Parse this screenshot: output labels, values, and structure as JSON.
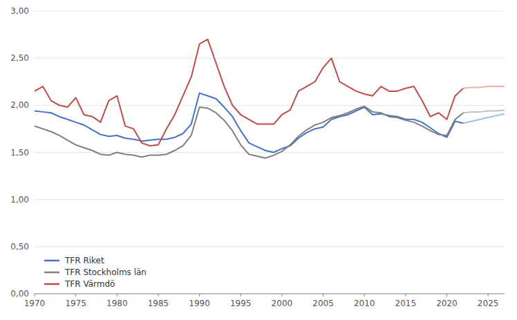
{
  "chart_data": {
    "type": "line",
    "x": [
      1970,
      1971,
      1972,
      1973,
      1974,
      1975,
      1976,
      1977,
      1978,
      1979,
      1980,
      1981,
      1982,
      1983,
      1984,
      1985,
      1986,
      1987,
      1988,
      1989,
      1990,
      1991,
      1992,
      1993,
      1994,
      1995,
      1996,
      1997,
      1998,
      1999,
      2000,
      2001,
      2002,
      2003,
      2004,
      2005,
      2006,
      2007,
      2008,
      2009,
      2010,
      2011,
      2012,
      2013,
      2014,
      2015,
      2016,
      2017,
      2018,
      2019,
      2020,
      2021,
      2022,
      2023,
      2024,
      2025,
      2026,
      2027
    ],
    "series": [
      {
        "name": "TFR Riket",
        "color": "#4472C4",
        "values": [
          1.94,
          1.93,
          1.92,
          1.88,
          1.85,
          1.82,
          1.79,
          1.74,
          1.69,
          1.67,
          1.68,
          1.65,
          1.64,
          1.62,
          1.63,
          1.64,
          1.64,
          1.66,
          1.7,
          1.8,
          2.13,
          2.1,
          2.07,
          1.98,
          1.88,
          1.73,
          1.6,
          1.56,
          1.52,
          1.5,
          1.54,
          1.57,
          1.65,
          1.71,
          1.75,
          1.77,
          1.85,
          1.88,
          1.9,
          1.94,
          1.98,
          1.9,
          1.91,
          1.89,
          1.88,
          1.85,
          1.85,
          1.82,
          1.76,
          1.7,
          1.66,
          1.83,
          1.81,
          null,
          null,
          null,
          null,
          null
        ]
      },
      {
        "name": "TFR Stockholms län",
        "color": "#7F7F7F",
        "values": [
          1.78,
          1.75,
          1.72,
          1.68,
          1.63,
          1.58,
          1.55,
          1.52,
          1.48,
          1.47,
          1.5,
          1.48,
          1.47,
          1.45,
          1.47,
          1.47,
          1.48,
          1.52,
          1.57,
          1.68,
          1.98,
          1.97,
          1.92,
          1.84,
          1.73,
          1.58,
          1.48,
          1.46,
          1.44,
          1.47,
          1.51,
          1.58,
          1.67,
          1.74,
          1.79,
          1.82,
          1.87,
          1.89,
          1.92,
          1.96,
          1.99,
          1.93,
          1.92,
          1.88,
          1.87,
          1.84,
          1.82,
          1.78,
          1.73,
          1.69,
          1.68,
          1.85,
          1.92,
          null,
          null,
          null,
          null,
          null
        ]
      },
      {
        "name": "TFR Värmdö",
        "color": "#BE4B48",
        "values": [
          2.15,
          2.2,
          2.05,
          2.0,
          1.98,
          2.08,
          1.9,
          1.88,
          1.82,
          2.05,
          2.1,
          1.78,
          1.75,
          1.6,
          1.57,
          1.58,
          1.75,
          1.9,
          2.1,
          2.3,
          2.65,
          2.7,
          2.45,
          2.2,
          2.0,
          1.9,
          1.85,
          1.8,
          1.8,
          1.8,
          1.9,
          1.95,
          2.15,
          2.2,
          2.25,
          2.4,
          2.5,
          2.25,
          2.2,
          2.15,
          2.12,
          2.1,
          2.2,
          2.15,
          2.15,
          2.18,
          2.2,
          2.05,
          1.88,
          1.92,
          1.85,
          2.1,
          2.18,
          null,
          null,
          null,
          null,
          null
        ]
      },
      {
        "color": "#9DC3E6",
        "values": [
          null,
          null,
          null,
          null,
          null,
          null,
          null,
          null,
          null,
          null,
          null,
          null,
          null,
          null,
          null,
          null,
          null,
          null,
          null,
          null,
          null,
          null,
          null,
          null,
          null,
          null,
          null,
          null,
          null,
          null,
          null,
          null,
          null,
          null,
          null,
          null,
          null,
          null,
          null,
          null,
          null,
          null,
          null,
          null,
          null,
          null,
          null,
          null,
          null,
          null,
          null,
          null,
          1.81,
          1.83,
          1.85,
          1.87,
          1.89,
          1.91
        ]
      },
      {
        "color": "#BFBFBF",
        "values": [
          null,
          null,
          null,
          null,
          null,
          null,
          null,
          null,
          null,
          null,
          null,
          null,
          null,
          null,
          null,
          null,
          null,
          null,
          null,
          null,
          null,
          null,
          null,
          null,
          null,
          null,
          null,
          null,
          null,
          null,
          null,
          null,
          null,
          null,
          null,
          null,
          null,
          null,
          null,
          null,
          null,
          null,
          null,
          null,
          null,
          null,
          null,
          null,
          null,
          null,
          null,
          null,
          1.92,
          1.93,
          1.93,
          1.94,
          1.94,
          1.95
        ]
      },
      {
        "color": "#F4AEAB",
        "values": [
          null,
          null,
          null,
          null,
          null,
          null,
          null,
          null,
          null,
          null,
          null,
          null,
          null,
          null,
          null,
          null,
          null,
          null,
          null,
          null,
          null,
          null,
          null,
          null,
          null,
          null,
          null,
          null,
          null,
          null,
          null,
          null,
          null,
          null,
          null,
          null,
          null,
          null,
          null,
          null,
          null,
          null,
          null,
          null,
          null,
          null,
          null,
          null,
          null,
          null,
          null,
          null,
          2.18,
          2.19,
          2.19,
          2.2,
          2.2,
          2.2
        ]
      }
    ],
    "xlim": [
      1970,
      2027
    ],
    "xticks": [
      1970,
      1975,
      1980,
      1985,
      1990,
      1995,
      2000,
      2005,
      2010,
      2015,
      2020,
      2025
    ],
    "ylim": [
      0.0,
      3.0
    ],
    "yticks": [
      {
        "value": 0.0,
        "label": "0,00"
      },
      {
        "value": 0.5,
        "label": "0,50"
      },
      {
        "value": 1.0,
        "label": "1,00"
      },
      {
        "value": 1.5,
        "label": "1,50"
      },
      {
        "value": 2.0,
        "label": "2,00"
      },
      {
        "value": 2.5,
        "label": "2,50"
      },
      {
        "value": 3.0,
        "label": "3,00"
      }
    ],
    "grid": true,
    "legend": "lower left"
  }
}
